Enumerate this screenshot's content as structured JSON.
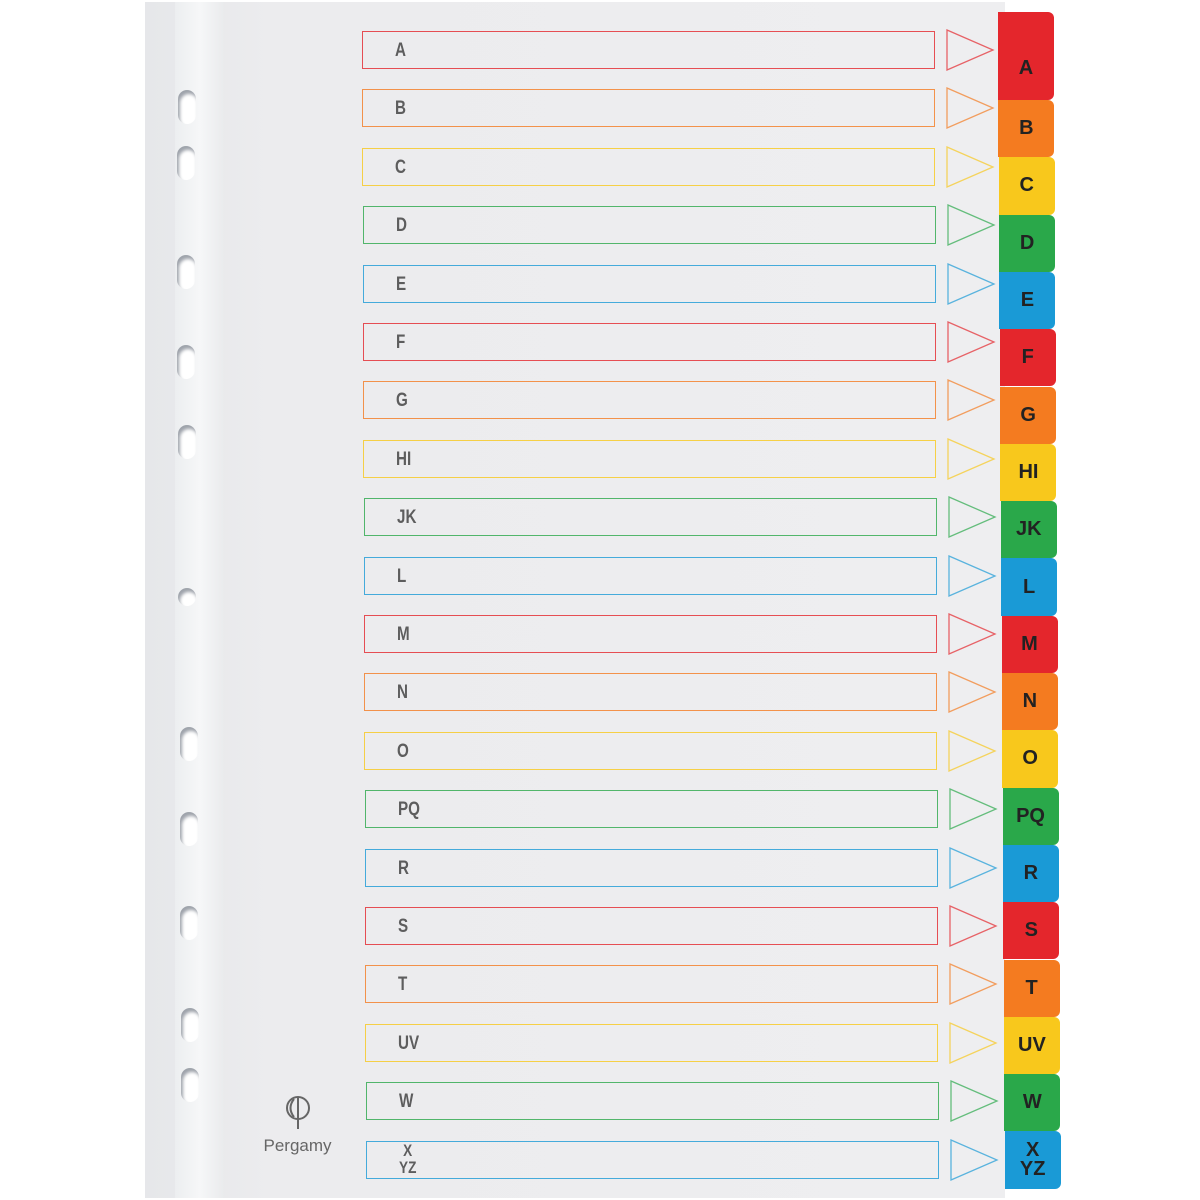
{
  "brand": "Pergamy",
  "colors": [
    "#e4262c",
    "#f47b20",
    "#f8c81c",
    "#2aa84a",
    "#1a9ad6"
  ],
  "tabs": [
    "A",
    "B",
    "C",
    "D",
    "E",
    "F",
    "G",
    "HI",
    "JK",
    "L",
    "M",
    "N",
    "O",
    "PQ",
    "R",
    "S",
    "T",
    "UV",
    "W",
    "X\nYZ"
  ],
  "icons": {
    "logo": "pergamy-logo-icon",
    "arrow": "arrow-outline-icon",
    "hole": "punch-hole-icon"
  }
}
